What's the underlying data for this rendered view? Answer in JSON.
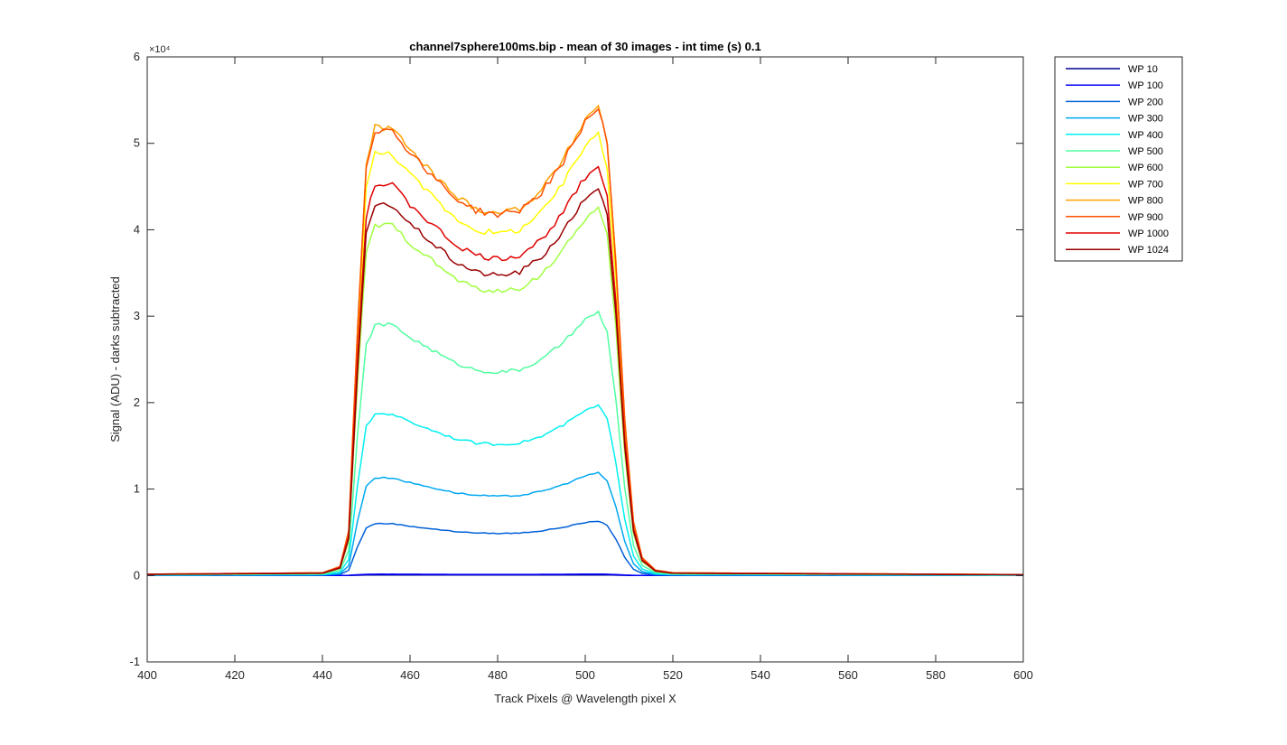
{
  "chart_data": {
    "type": "line",
    "title": "channel7sphere100ms.bip - mean of 30 images - int time (s) 0.1",
    "xlabel": "Track Pixels @ Wavelength pixel X",
    "ylabel": "Signal (ADU) - darks subtracted",
    "xlim": [
      400,
      600
    ],
    "ylim": [
      -10000,
      60000
    ],
    "y_exponent_label": "×10⁴",
    "x_ticks": [
      400,
      420,
      440,
      460,
      480,
      500,
      520,
      540,
      560,
      580,
      600
    ],
    "y_ticks": [
      -10000,
      0,
      10000,
      20000,
      30000,
      40000,
      50000,
      60000
    ],
    "y_tick_labels": [
      "-1",
      "0",
      "1",
      "2",
      "3",
      "4",
      "5",
      "6"
    ],
    "grid": false,
    "legend_position": "outside-right",
    "profile_x": [
      400,
      440,
      444,
      446,
      448,
      450,
      452,
      456,
      460,
      465,
      470,
      475,
      480,
      485,
      490,
      495,
      500,
      503,
      505,
      507,
      509,
      511,
      513,
      516,
      520,
      600
    ],
    "series": [
      {
        "name": "WP 10",
        "color": "#00008f",
        "peak": 60
      },
      {
        "name": "WP 100",
        "color": "#0000ff",
        "peak": 150
      },
      {
        "name": "WP 200",
        "color": "#0060d8",
        "peak": 6000
      },
      {
        "name": "WP 300",
        "color": "#00a8f0",
        "peak": 11300
      },
      {
        "name": "WP 400",
        "color": "#00f0f0",
        "peak": 18700
      },
      {
        "name": "WP 500",
        "color": "#50ffa0",
        "peak": 29000
      },
      {
        "name": "WP 600",
        "color": "#a0ff40",
        "peak": 40500
      },
      {
        "name": "WP 700",
        "color": "#ffff00",
        "peak": 48800
      },
      {
        "name": "WP 800",
        "color": "#ffa000",
        "peak": 51800
      },
      {
        "name": "WP 900",
        "color": "#ff5000",
        "peak": 51500
      },
      {
        "name": "WP 1000",
        "color": "#e00000",
        "peak": 45200
      },
      {
        "name": "WP 1024",
        "color": "#9a0000",
        "peak": 42800
      }
    ]
  }
}
